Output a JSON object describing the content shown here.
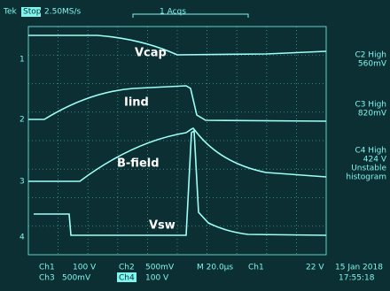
{
  "header": {
    "brand": "Tek",
    "state": "Stop",
    "sample_rate": "2.50MS/s",
    "acquisitions": "1 Acqs"
  },
  "traces": [
    {
      "marker": "1",
      "label": "Vcap"
    },
    {
      "marker": "2",
      "label": "Iind"
    },
    {
      "marker": "3",
      "label": "B-field"
    },
    {
      "marker": "4",
      "label": "Vsw"
    }
  ],
  "side_readouts": [
    {
      "lines": [
        "C2 High",
        "560mV"
      ]
    },
    {
      "lines": [
        "C3 High",
        "820mV"
      ]
    },
    {
      "lines": [
        "C4 High",
        "424 V",
        "Unstable",
        "histogram"
      ]
    }
  ],
  "footer": {
    "row1": [
      "Ch1",
      "100 V",
      "Ch2",
      "500mV",
      "M 20.0µs",
      "Ch1",
      "22 V"
    ],
    "row2": [
      "Ch3",
      "500mV",
      "Ch4",
      "100 V"
    ],
    "date": "15 Jan 2018",
    "time": "17:55:18"
  }
}
